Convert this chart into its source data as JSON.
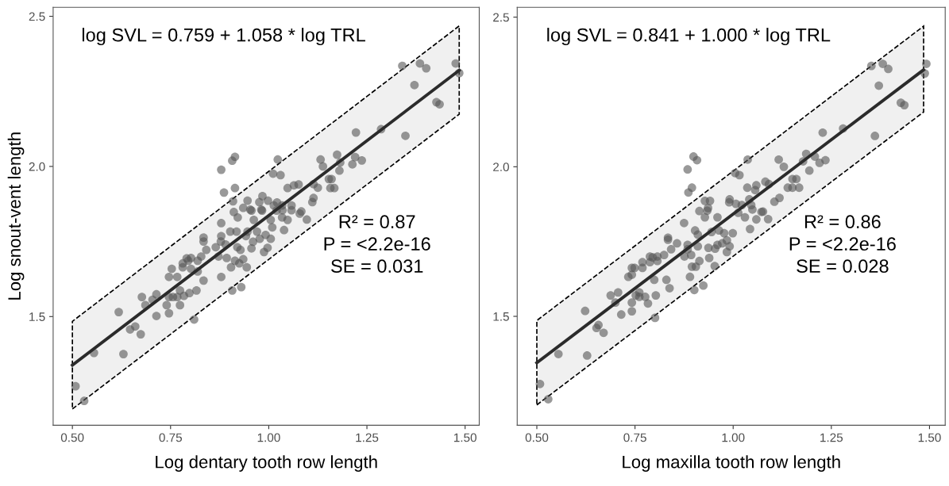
{
  "chart_data": [
    {
      "type": "scatter",
      "xlabel": "Log dentary tooth row length",
      "ylabel": "Log snout-vent length",
      "xlim": [
        0.451,
        1.536
      ],
      "ylim": [
        1.138,
        2.53
      ],
      "xticks": [
        {
          "value": 0.5,
          "label": "0.50"
        },
        {
          "value": 0.75,
          "label": "0.75"
        },
        {
          "value": 1.0,
          "label": "1.00"
        },
        {
          "value": 1.25,
          "label": "1.25"
        },
        {
          "value": 1.5,
          "label": "1.50"
        }
      ],
      "yticks": [
        {
          "value": 1.5,
          "label": "1.5"
        },
        {
          "value": 2.0,
          "label": "2.0"
        },
        {
          "value": 2.5,
          "label": "2.5"
        }
      ],
      "grid": false,
      "annotations": [
        "log SVL = 0.759 + 1.058 * log TRL",
        "R² = 0.87\nP = <2.2e-16\nSE = 0.031"
      ],
      "series": [
        {
          "color": "#555555",
          "marker": "circle",
          "x": [
            1.34,
            1.385,
            1.401,
            1.476,
            1.485,
            1.371,
            1.427,
            1.435,
            1.348,
            1.286,
            1.222,
            0.914,
            0.907,
            0.879,
            1.023,
            1.132,
            1.174,
            1.22,
            1.237,
            1.213,
            1.138,
            1.182,
            1.18,
            1.011,
            1.03,
            1.153,
            1.16,
            1.157,
            1.167,
            1.114,
            1.125,
            0.886,
            0.914,
            1.048,
            1.064,
            1.076,
            1.114,
            1.111,
            0.909,
            0.946,
            0.984,
            0.998,
            0.976,
            0.935,
            0.953,
            0.981,
            1.013,
            1.034,
            1.058,
            1.021,
            1.035,
            1.058,
            1.083,
            0.911,
            0.921,
            0.879,
            0.956,
            0.962,
            0.983,
            1.005,
            1.02,
            1.009,
            1.034,
            1.048,
            1.039,
            1.079,
            1.097,
            0.902,
            0.918,
            0.946,
            0.97,
            0.992,
            0.942,
            0.879,
            0.977,
            1.005,
            0.96,
            0.956,
            0.928,
            0.92,
            0.988,
            0.997,
            0.834,
            0.834,
            0.878,
            0.865,
            0.89,
            0.841,
            0.872,
            0.893,
            0.914,
            0.935,
            0.904,
            0.925,
            0.944,
            0.828,
            0.819,
            0.802,
            0.791,
            0.781,
            0.795,
            0.781,
            0.802,
            0.819,
            0.834,
            0.816,
            0.798,
            0.753,
            0.746,
            0.767,
            0.774,
            0.784,
            0.767,
            0.756,
            0.746,
            0.774,
            0.74,
            0.746,
            0.714,
            0.704,
            0.677,
            0.686,
            0.714,
            0.618,
            0.879,
            0.907,
            0.93,
            0.81,
            0.647,
            0.66,
            0.674,
            0.555,
            0.63,
            0.508,
            0.53
          ],
          "values": [
            2.335,
            2.343,
            2.327,
            2.343,
            2.311,
            2.271,
            2.214,
            2.207,
            2.102,
            2.124,
            2.113,
            2.032,
            2.019,
            1.989,
            2.023,
            2.023,
            2.039,
            2.031,
            2.02,
            2.007,
            2.0,
            2.013,
            1.986,
            1.976,
            1.971,
            1.958,
            1.958,
            1.928,
            1.928,
            1.941,
            1.929,
            1.913,
            1.928,
            1.928,
            1.937,
            1.94,
            1.895,
            1.881,
            1.884,
            1.886,
            1.901,
            1.886,
            1.881,
            1.862,
            1.856,
            1.856,
            1.87,
            1.87,
            1.87,
            1.88,
            1.854,
            1.854,
            1.85,
            1.848,
            1.83,
            1.811,
            1.853,
            1.822,
            1.853,
            1.822,
            1.853,
            1.797,
            1.83,
            1.822,
            1.788,
            1.843,
            1.823,
            1.783,
            1.783,
            1.783,
            1.783,
            1.772,
            1.768,
            1.768,
            1.759,
            1.759,
            1.749,
            1.727,
            1.722,
            1.731,
            1.715,
            1.729,
            1.763,
            1.75,
            1.75,
            1.731,
            1.74,
            1.722,
            1.7,
            1.695,
            1.686,
            1.691,
            1.664,
            1.677,
            1.664,
            1.7,
            1.686,
            1.695,
            1.694,
            1.677,
            1.686,
            1.664,
            1.659,
            1.65,
            1.62,
            1.587,
            1.578,
            1.659,
            1.632,
            1.632,
            1.587,
            1.569,
            1.565,
            1.565,
            1.565,
            1.538,
            1.538,
            1.511,
            1.574,
            1.556,
            1.565,
            1.538,
            1.502,
            1.515,
            1.632,
            1.587,
            1.598,
            1.49,
            1.457,
            1.467,
            1.441,
            1.379,
            1.375,
            1.268,
            1.219
          ]
        },
        {
          "type": "line",
          "color": "#2b2b2b",
          "x": [
            0.5,
            1.485
          ],
          "values": [
            1.338,
            2.32
          ],
          "lower": [
            1.192,
            2.174
          ],
          "upper": [
            1.484,
            2.468
          ]
        }
      ]
    },
    {
      "type": "scatter",
      "xlabel": "Log maxilla tooth row length",
      "xlim": [
        0.45,
        1.54
      ],
      "ylim": [
        1.136,
        2.533
      ],
      "xticks": [
        {
          "value": 0.5,
          "label": "0.50"
        },
        {
          "value": 0.75,
          "label": "0.75"
        },
        {
          "value": 1.0,
          "label": "1.00"
        },
        {
          "value": 1.25,
          "label": "1.25"
        },
        {
          "value": 1.5,
          "label": "1.50"
        }
      ],
      "yticks": [
        {
          "value": 1.5,
          "label": "1.5"
        },
        {
          "value": 2.0,
          "label": "2.0"
        },
        {
          "value": 2.5,
          "label": "2.5"
        }
      ],
      "grid": false,
      "annotations": [
        "log SVL = 0.841 + 1.000 * log TRL",
        "R² = 0.86\nP = <2.2e-16\nSE = 0.028"
      ],
      "series": [
        {
          "color": "#555555",
          "marker": "circle",
          "x": [
            1.352,
            1.381,
            1.395,
            1.492,
            1.488,
            1.371,
            1.427,
            1.436,
            1.361,
            1.28,
            1.228,
            0.899,
            0.908,
            0.884,
            1.037,
            1.116,
            1.129,
            1.186,
            1.208,
            1.235,
            1.22,
            1.178,
            1.194,
            1.005,
            1.016,
            1.151,
            1.161,
            1.139,
            1.151,
            1.168,
            1.082,
            1.091,
            0.895,
            0.886,
            1.036,
            1.059,
            1.056,
            1.118,
            1.105,
            0.928,
            0.941,
            0.991,
            0.936,
            0.99,
            1.007,
            1.022,
            1.041,
            1.046,
            1.049,
            0.914,
            1.076,
            0.934,
            0.96,
            1.013,
            1.03,
            1.072,
            1.089,
            1.059,
            1.043,
            0.875,
            0.903,
            0.91,
            0.928,
            0.945,
            0.964,
            0.977,
            0.999,
            0.984,
            0.972,
            0.96,
            0.991,
            0.937,
            0.954,
            0.884,
            0.91,
            0.834,
            0.834,
            0.857,
            0.842,
            0.884,
            0.876,
            0.893,
            0.914,
            0.939,
            0.895,
            0.905,
            0.984,
            0.824,
            0.807,
            0.795,
            0.788,
            0.769,
            0.788,
            0.769,
            0.749,
            0.742,
            0.807,
            0.799,
            0.83,
            0.838,
            0.803,
            0.783,
            0.761,
            0.752,
            0.742,
            0.742,
            0.761,
            0.776,
            0.733,
            0.742,
            0.707,
            0.688,
            0.7,
            0.715,
            0.623,
            0.657,
            0.652,
            0.67,
            0.801,
            0.901,
            0.924,
            0.89,
            0.953,
            0.555,
            0.628,
            0.508,
            0.529
          ],
          "values": [
            2.337,
            2.344,
            2.327,
            2.344,
            2.312,
            2.271,
            2.214,
            2.206,
            2.103,
            2.128,
            2.114,
            2.034,
            2.022,
            1.991,
            2.024,
            2.024,
            2.0,
            2.043,
            2.034,
            2.022,
            2.013,
            2.018,
            1.987,
            1.979,
            1.972,
            1.959,
            1.959,
            1.93,
            1.93,
            1.93,
            1.95,
            1.942,
            1.93,
            1.914,
            1.93,
            1.938,
            1.922,
            1.896,
            1.883,
            1.886,
            1.886,
            1.891,
            1.862,
            1.881,
            1.876,
            1.872,
            1.891,
            1.872,
            1.857,
            1.852,
            1.85,
            1.853,
            1.831,
            1.846,
            1.831,
            1.849,
            1.825,
            1.824,
            1.792,
            1.812,
            1.787,
            1.773,
            1.831,
            1.782,
            1.787,
            1.778,
            1.778,
            1.754,
            1.744,
            1.739,
            1.734,
            1.729,
            1.726,
            1.739,
            1.734,
            1.763,
            1.756,
            1.744,
            1.724,
            1.724,
            1.7,
            1.705,
            1.685,
            1.695,
            1.666,
            1.666,
            1.715,
            1.705,
            1.7,
            1.697,
            1.7,
            1.681,
            1.681,
            1.662,
            1.662,
            1.662,
            1.685,
            1.622,
            1.622,
            1.594,
            1.57,
            1.543,
            1.58,
            1.57,
            1.546,
            1.517,
            1.565,
            1.565,
            1.632,
            1.639,
            1.58,
            1.57,
            1.546,
            1.506,
            1.518,
            1.471,
            1.461,
            1.445,
            1.495,
            1.588,
            1.603,
            1.632,
            1.668,
            1.374,
            1.369,
            1.274,
            1.223
          ]
        },
        {
          "type": "line",
          "color": "#2b2b2b",
          "x": [
            0.5,
            1.485
          ],
          "values": [
            1.345,
            2.324
          ],
          "lower": [
            1.204,
            2.183
          ],
          "upper": [
            1.486,
            2.47
          ]
        }
      ]
    }
  ]
}
